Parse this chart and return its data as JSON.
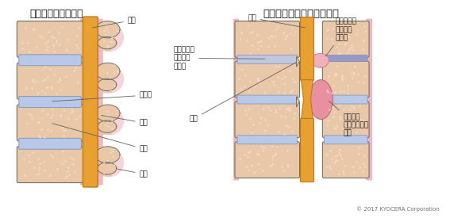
{
  "title_left": "正常な腰椎の断面図",
  "title_right": "腰椎脊柱管狭窄症の断面図",
  "copyright": "© 2017 KYOCERA Corporation",
  "bg_color": "#ffffff",
  "bone_fill": "#e8c8a8",
  "bone_edge": "#707060",
  "bone_texture": "#f5e0cc",
  "disc_fill": "#b8c8e8",
  "disc_edge": "#8898b8",
  "cord_fill": "#e8a030",
  "cord_edge": "#c07818",
  "lig_fill": "#f0b8c0",
  "lig_edge": "#d09090",
  "lig_thick_fill": "#e890a0",
  "lig_thick_edge": "#c06878",
  "outline": "#505048",
  "text_color": "#202020",
  "arrow_color": "#606060"
}
